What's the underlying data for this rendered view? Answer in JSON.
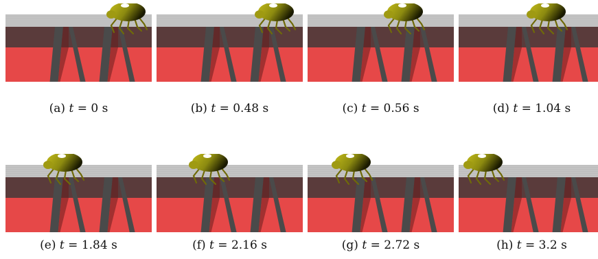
{
  "figure": {
    "panels": [
      {
        "label": "(a)",
        "variable": "t",
        "equals": "=",
        "value": "0",
        "unit": "s"
      },
      {
        "label": "(b)",
        "variable": "t",
        "equals": "=",
        "value": "0.48",
        "unit": "s"
      },
      {
        "label": "(c)",
        "variable": "t",
        "equals": "=",
        "value": "0.56",
        "unit": "s"
      },
      {
        "label": "(d)",
        "variable": "t",
        "equals": "=",
        "value": "1.04",
        "unit": "s"
      },
      {
        "label": "(e)",
        "variable": "t",
        "equals": "=",
        "value": "1.84",
        "unit": "s"
      },
      {
        "label": "(f)",
        "variable": "t",
        "equals": "=",
        "value": "2.16",
        "unit": "s"
      },
      {
        "label": "(g)",
        "variable": "t",
        "equals": "=",
        "value": "2.72",
        "unit": "s"
      },
      {
        "label": "(h)",
        "variable": "t",
        "equals": "=",
        "value": "3.2",
        "unit": "s"
      }
    ]
  },
  "colors": {
    "floor": "#bdbdbd",
    "block_top": "#5a3b3b",
    "block_front": "#e64848",
    "gap_wall": "#4a4a4a",
    "beetle_body": "#c2bb1a",
    "beetle_shadow": "#1a1a00",
    "beetle_highlight": "#ffffff"
  }
}
